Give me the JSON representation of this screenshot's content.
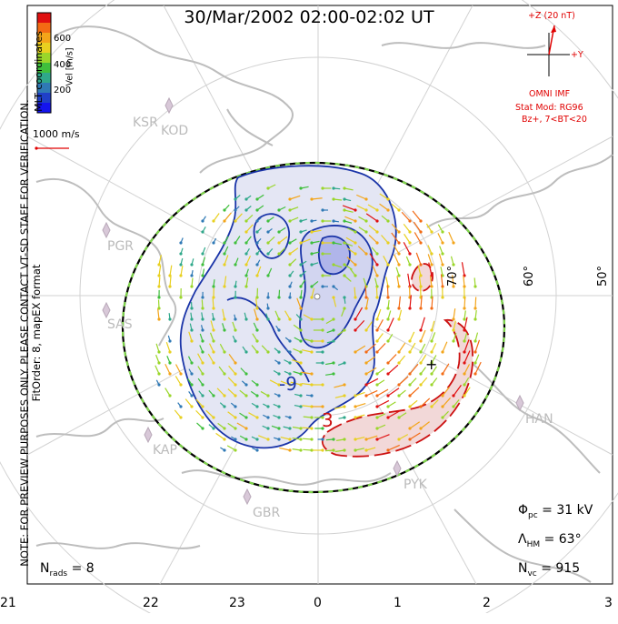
{
  "title": "30/Mar/2002 02:00-02:02 UT",
  "note_line1": "NOTE: FOR PREVIEW PURPOSES ONLY. PLEASE CONTACT VT-SD STAFF FOR VERIFICATION.",
  "note_line2": "FitOrder: 8, mapEX format",
  "coords_label": "MLT coordinates",
  "colorbar": {
    "label": "Vel [m/s]",
    "ticks": [
      "600",
      "400",
      "200"
    ],
    "colors": [
      "#e01010",
      "#f36b14",
      "#f3a51a",
      "#e8d020",
      "#9ad62a",
      "#3fbf3c",
      "#2fa88a",
      "#2f79b5",
      "#2040c8",
      "#1414ee"
    ]
  },
  "scale_vector": "1000 m/s",
  "imf": {
    "z_label": "+Z (20 nT)",
    "y_label": "+Y",
    "name": "OMNI IMF",
    "model": "Stat Mod: RG96",
    "condition": "Bz+, 7<BT<20"
  },
  "latitude_labels": [
    "70°",
    "60°",
    "50°"
  ],
  "mlt_hours": [
    "21",
    "22",
    "23",
    "0",
    "1",
    "2",
    "3"
  ],
  "sites": [
    "KSR",
    "KOD",
    "PGR",
    "SAS",
    "KAP",
    "GBR",
    "PYK",
    "HAN"
  ],
  "contour_labels": [
    "-9",
    "3"
  ],
  "stats": {
    "phi_symbol": "Φ",
    "phi_sub": "pc",
    "phi_value": "= 31 kV",
    "lambda_symbol": "Λ",
    "lambda_sub": "HM",
    "lambda_value": "= 63°",
    "nvc_symbol": "N",
    "nvc_sub": "vc",
    "nvc_value": "= 915",
    "nrads_symbol": "N",
    "nrads_sub": "rads",
    "nrads_value": "= 8"
  },
  "colors": {
    "negative_cell": "#1030b0",
    "positive_cell": "#d01010",
    "coastline": "#bbbbbb",
    "grid": "#cccccc",
    "boundary_dash": "#60c040"
  }
}
